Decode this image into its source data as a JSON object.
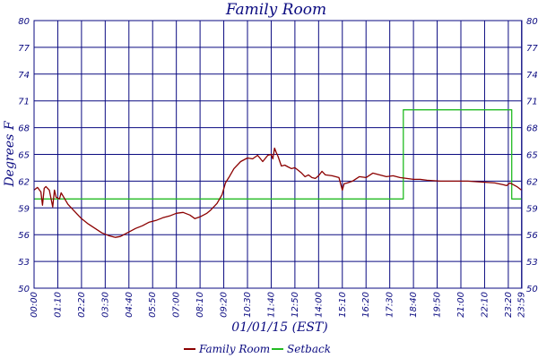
{
  "chart_data": {
    "type": "line",
    "title": "Family Room",
    "xlabel": "01/01/15 (EST)",
    "ylabel": "Degrees F",
    "ylim": [
      50,
      80
    ],
    "xlim": [
      0,
      1440
    ],
    "grid": true,
    "legend_position": "bottom-center",
    "y_ticks": [
      "50",
      "53",
      "56",
      "59",
      "62",
      "65",
      "68",
      "71",
      "74",
      "77",
      "80"
    ],
    "y_tick_values": [
      50,
      53,
      56,
      59,
      62,
      65,
      68,
      71,
      74,
      77,
      80
    ],
    "x_ticks": [
      "00:00",
      "01:10",
      "02:20",
      "03:30",
      "04:40",
      "05:50",
      "07:00",
      "08:10",
      "09:20",
      "10:30",
      "11:40",
      "12:50",
      "14:00",
      "15:10",
      "16:20",
      "17:30",
      "18:40",
      "19:50",
      "21:00",
      "22:10",
      "23:20",
      "23:59"
    ],
    "x_tick_minutes": [
      0,
      70,
      140,
      210,
      280,
      350,
      420,
      490,
      560,
      630,
      700,
      770,
      840,
      910,
      980,
      1050,
      1120,
      1190,
      1260,
      1330,
      1400,
      1439
    ],
    "series": [
      {
        "name": "Family Room",
        "color": "#8b0000",
        "x": [
          0,
          10,
          20,
          25,
          30,
          35,
          45,
          55,
          60,
          65,
          75,
          80,
          100,
          120,
          140,
          160,
          180,
          200,
          220,
          240,
          255,
          270,
          285,
          295,
          300,
          320,
          340,
          360,
          380,
          400,
          420,
          440,
          460,
          475,
          490,
          500,
          510,
          520,
          540,
          555,
          565,
          575,
          590,
          610,
          630,
          645,
          660,
          675,
          690,
          700,
          705,
          710,
          715,
          720,
          730,
          740,
          750,
          760,
          770,
          780,
          790,
          800,
          810,
          820,
          830,
          840,
          850,
          860,
          880,
          900,
          910,
          915,
          925,
          940,
          960,
          980,
          1000,
          1020,
          1040,
          1060,
          1080,
          1100,
          1120,
          1140,
          1160,
          1200,
          1240,
          1280,
          1320,
          1360,
          1385,
          1395,
          1405,
          1415,
          1425,
          1439
        ],
        "values": [
          61,
          61.3,
          60.8,
          59.3,
          61.2,
          61.4,
          61.0,
          59.1,
          61.0,
          60.2,
          60.0,
          60.7,
          59.4,
          58.6,
          57.8,
          57.2,
          56.7,
          56.2,
          55.9,
          55.7,
          55.8,
          56.1,
          56.4,
          56.6,
          56.7,
          57.0,
          57.4,
          57.6,
          57.9,
          58.1,
          58.4,
          58.5,
          58.2,
          57.8,
          58.0,
          58.2,
          58.4,
          58.7,
          59.5,
          60.5,
          61.8,
          62.4,
          63.4,
          64.2,
          64.6,
          64.5,
          64.9,
          64.2,
          64.9,
          65.0,
          64.5,
          65.7,
          65.2,
          64.8,
          63.7,
          63.8,
          63.6,
          63.4,
          63.5,
          63.2,
          62.9,
          62.5,
          62.7,
          62.4,
          62.3,
          62.6,
          63.1,
          62.7,
          62.6,
          62.4,
          61.0,
          61.7,
          61.8,
          62.0,
          62.5,
          62.4,
          62.9,
          62.7,
          62.5,
          62.6,
          62.4,
          62.3,
          62.2,
          62.2,
          62.1,
          62.0,
          62.0,
          62.0,
          61.9,
          61.8,
          61.6,
          61.5,
          61.8,
          61.6,
          61.4,
          61.0
        ]
      },
      {
        "name": "Setback",
        "color": "#22bb22",
        "x": [
          0,
          1090,
          1090,
          1410,
          1410,
          1439
        ],
        "values": [
          60,
          60,
          70,
          70,
          60,
          60
        ]
      }
    ]
  }
}
